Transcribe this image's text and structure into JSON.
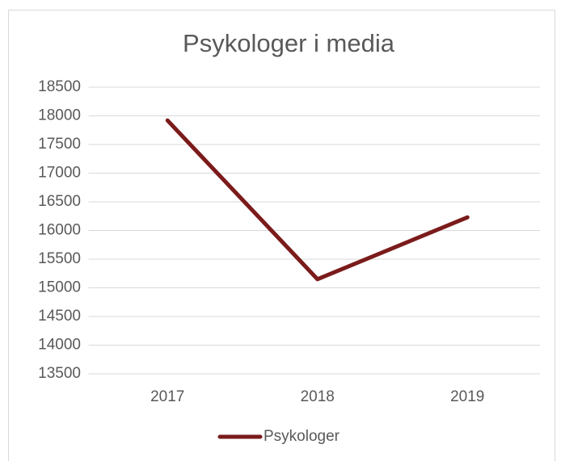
{
  "chart_data": {
    "type": "line",
    "title": "Psykologer i media",
    "categories": [
      "2017",
      "2018",
      "2019"
    ],
    "series": [
      {
        "name": "Psykologer",
        "color": "#7b1b1b",
        "values": [
          17920,
          15150,
          16230
        ]
      }
    ],
    "ylim": [
      13500,
      18500
    ],
    "yticks": [
      13500,
      14000,
      14500,
      15000,
      15500,
      16000,
      16500,
      17000,
      17500,
      18000,
      18500
    ],
    "grid": true,
    "legend": "bottom"
  }
}
